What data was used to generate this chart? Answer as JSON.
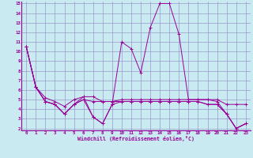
{
  "xlabel": "Windchill (Refroidissement éolien,°C)",
  "x": [
    0,
    1,
    2,
    3,
    4,
    5,
    6,
    7,
    8,
    9,
    10,
    11,
    12,
    13,
    14,
    15,
    16,
    17,
    18,
    19,
    20,
    21,
    22,
    23
  ],
  "series": [
    [
      10.5,
      6.3,
      4.8,
      4.5,
      3.5,
      4.5,
      5.3,
      3.2,
      2.5,
      4.5,
      11.0,
      10.3,
      7.8,
      12.5,
      15.0,
      15.0,
      11.8,
      5.0,
      5.0,
      5.0,
      4.8,
      3.5,
      2.0,
      2.5
    ],
    [
      10.5,
      6.3,
      5.2,
      4.8,
      4.3,
      5.0,
      5.3,
      5.3,
      4.8,
      4.8,
      5.0,
      5.0,
      5.0,
      5.0,
      5.0,
      5.0,
      5.0,
      5.0,
      5.0,
      5.0,
      5.0,
      4.5,
      4.5,
      4.5
    ],
    [
      10.5,
      6.3,
      4.8,
      4.5,
      3.5,
      4.5,
      5.0,
      3.2,
      2.5,
      4.5,
      4.8,
      4.8,
      4.8,
      4.8,
      4.8,
      4.8,
      4.8,
      4.8,
      4.8,
      4.5,
      4.5,
      3.5,
      2.0,
      2.5
    ],
    [
      10.5,
      6.3,
      4.8,
      4.5,
      3.5,
      4.5,
      5.0,
      4.8,
      4.8,
      4.8,
      4.8,
      4.8,
      4.8,
      4.8,
      4.8,
      4.8,
      4.8,
      4.8,
      4.8,
      4.5,
      4.5,
      3.5,
      2.0,
      2.5
    ]
  ],
  "color": "#990099",
  "background_color": "#c8eaf0",
  "grid_color": "#9999cc",
  "ylim": [
    2,
    15
  ],
  "xlim": [
    0,
    23
  ],
  "yticks": [
    2,
    3,
    4,
    5,
    6,
    7,
    8,
    9,
    10,
    11,
    12,
    13,
    14,
    15
  ],
  "xticks": [
    0,
    1,
    2,
    3,
    4,
    5,
    6,
    7,
    8,
    9,
    10,
    11,
    12,
    13,
    14,
    15,
    16,
    17,
    18,
    19,
    20,
    21,
    22,
    23
  ]
}
